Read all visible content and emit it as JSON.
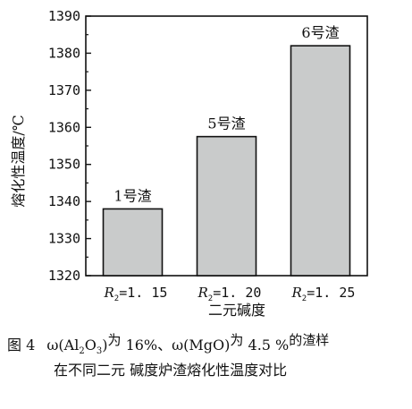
{
  "chart_data": {
    "type": "bar",
    "ylabel": "熔化性温度/℃",
    "xlabel": "二元碱度",
    "ylim": [
      1320,
      1390
    ],
    "yticks": [
      1320,
      1330,
      1340,
      1350,
      1360,
      1370,
      1380,
      1390
    ],
    "categories": [
      {
        "prefix": "R",
        "sub": "2",
        "eq": "=1. 15"
      },
      {
        "prefix": "R",
        "sub": "2",
        "eq": "=1. 20"
      },
      {
        "prefix": "R",
        "sub": "2",
        "eq": "=1. 25"
      }
    ],
    "values": [
      1338,
      1357.5,
      1382
    ],
    "bar_labels": [
      "1号渣",
      "5号渣",
      "6号渣"
    ],
    "bar_color": "#c9cbcb",
    "bar_stroke": "#111111"
  },
  "caption": {
    "fig_label": "图 4",
    "line1_parts": {
      "omega1": "ω(Al",
      "sub_a": "2",
      "o": "O",
      "sub_b": "3",
      "close1": ")",
      "wei1": "为",
      "pct1": " 16%、ω(MgO)",
      "wei2": "为",
      "pct2": " 4.5 %",
      "tail": "的渣样"
    },
    "line2": "在不同二元 碱度炉渣熔化性温度对比"
  }
}
